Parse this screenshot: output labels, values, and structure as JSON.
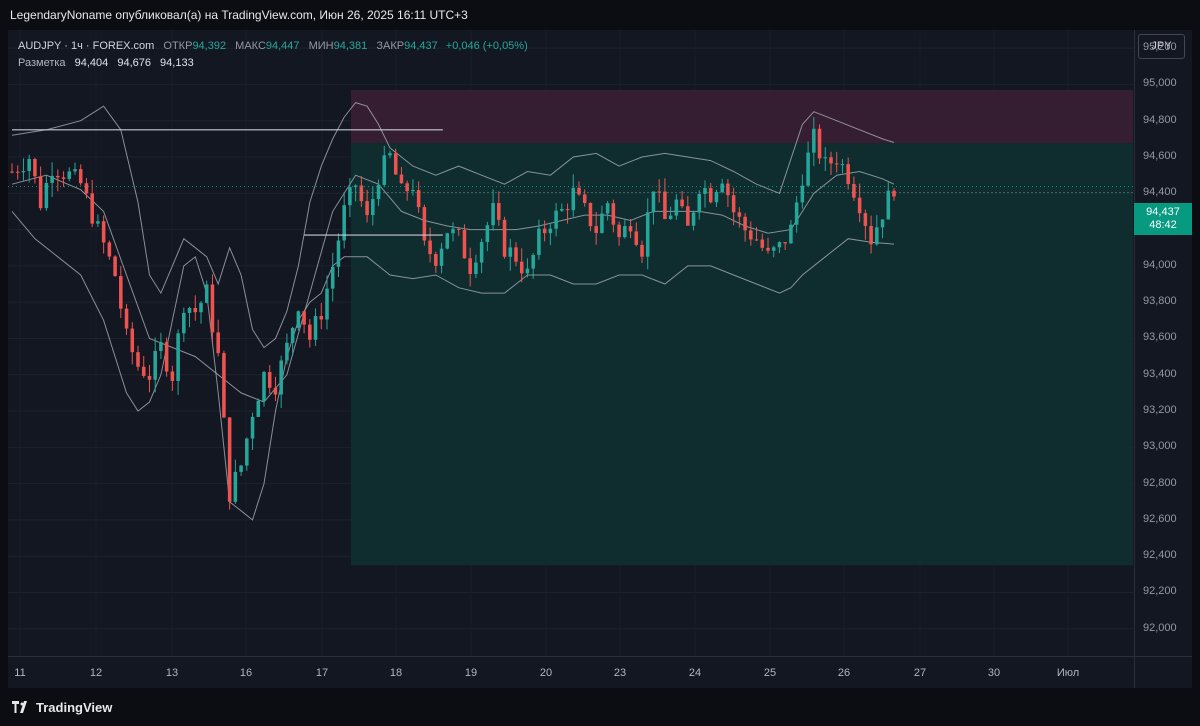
{
  "header": {
    "publisher_line": "LegendaryNoname опубликовал(а) на TradingView.com, Июн 26, 2025 16:11 UTC+3"
  },
  "legend": {
    "symbol": "AUDJPY · 1ч · FOREX.com",
    "open_label": "ОТКР",
    "open_value": "94,392",
    "high_label": "МАКС",
    "high_value": "94,447",
    "low_label": "МИН",
    "low_value": "94,381",
    "close_label": "ЗАКР",
    "close_value": "94,437",
    "change": "+0,046 (+0,05%)",
    "markup_label": "Разметка",
    "markup_values": [
      "94,404",
      "94,676",
      "94,133"
    ]
  },
  "currency_button": "JPY",
  "last_price": {
    "value": "94,437",
    "countdown": "48:42",
    "color": "#089981"
  },
  "price_axis": {
    "ticks": [
      "95,200",
      "95,000",
      "94,800",
      "94,600",
      "94,400",
      "94,200",
      "94,000",
      "93,800",
      "93,600",
      "93,400",
      "93,200",
      "93,000",
      "92,800",
      "92,600",
      "92,400",
      "92,200",
      "92,000"
    ]
  },
  "time_axis": {
    "labels": [
      "11",
      "12",
      "13",
      "16",
      "17",
      "18",
      "19",
      "20",
      "23",
      "24",
      "25",
      "26",
      "27",
      "30",
      "Июл"
    ]
  },
  "footer": {
    "brand": "TradingView"
  },
  "chart_data": {
    "type": "candlestick",
    "symbol": "AUDJPY",
    "timeframe": "1h",
    "ylim": [
      91.85,
      95.3
    ],
    "up_color": "#26a69a",
    "down_color": "#ef5350",
    "indicator": "Bollinger Bands",
    "close_path": [
      [
        0,
        94.52
      ],
      [
        3,
        94.6
      ],
      [
        5,
        94.35
      ],
      [
        7,
        94.55
      ],
      [
        10,
        94.5
      ],
      [
        12,
        94.45
      ],
      [
        15,
        94.2
      ],
      [
        18,
        93.95
      ],
      [
        20,
        93.6
      ],
      [
        22,
        93.45
      ],
      [
        24,
        93.4
      ],
      [
        26,
        93.55
      ],
      [
        28,
        93.4
      ],
      [
        30,
        93.8
      ],
      [
        32,
        93.75
      ],
      [
        34,
        93.85
      ],
      [
        36,
        93.5
      ],
      [
        38,
        92.75
      ],
      [
        40,
        92.9
      ],
      [
        42,
        93.2
      ],
      [
        44,
        93.4
      ],
      [
        46,
        93.35
      ],
      [
        48,
        93.55
      ],
      [
        50,
        93.8
      ],
      [
        52,
        93.6
      ],
      [
        54,
        93.75
      ],
      [
        56,
        94.0
      ],
      [
        58,
        94.3
      ],
      [
        60,
        94.45
      ],
      [
        62,
        94.25
      ],
      [
        64,
        94.5
      ],
      [
        66,
        94.6
      ],
      [
        68,
        94.4
      ],
      [
        70,
        94.45
      ],
      [
        72,
        94.1
      ],
      [
        74,
        94.05
      ],
      [
        76,
        94.2
      ],
      [
        78,
        94.15
      ],
      [
        80,
        94.0
      ],
      [
        82,
        94.15
      ],
      [
        84,
        94.3
      ],
      [
        86,
        94.1
      ],
      [
        88,
        94.05
      ],
      [
        90,
        93.95
      ],
      [
        92,
        94.15
      ],
      [
        94,
        94.25
      ],
      [
        96,
        94.3
      ],
      [
        98,
        94.4
      ],
      [
        100,
        94.3
      ],
      [
        102,
        94.2
      ],
      [
        104,
        94.35
      ],
      [
        106,
        94.15
      ],
      [
        108,
        94.25
      ],
      [
        110,
        94.1
      ],
      [
        112,
        94.45
      ],
      [
        114,
        94.25
      ],
      [
        116,
        94.35
      ],
      [
        118,
        94.2
      ],
      [
        120,
        94.45
      ],
      [
        122,
        94.4
      ],
      [
        124,
        94.5
      ],
      [
        126,
        94.3
      ],
      [
        128,
        94.2
      ],
      [
        130,
        94.15
      ],
      [
        132,
        94.05
      ],
      [
        134,
        94.1
      ],
      [
        136,
        94.2
      ],
      [
        138,
        94.5
      ],
      [
        140,
        94.7
      ],
      [
        142,
        94.55
      ],
      [
        144,
        94.6
      ],
      [
        146,
        94.5
      ],
      [
        148,
        94.35
      ],
      [
        150,
        94.15
      ],
      [
        152,
        94.3
      ],
      [
        154,
        94.44
      ]
    ],
    "upper_band": [
      [
        0,
        94.72
      ],
      [
        6,
        94.75
      ],
      [
        12,
        94.8
      ],
      [
        16,
        94.88
      ],
      [
        19,
        94.75
      ],
      [
        22,
        94.35
      ],
      [
        24,
        93.95
      ],
      [
        26,
        93.85
      ],
      [
        28,
        94.0
      ],
      [
        30,
        94.15
      ],
      [
        32,
        94.1
      ],
      [
        34,
        94.05
      ],
      [
        36,
        93.9
      ],
      [
        38,
        94.1
      ],
      [
        40,
        93.95
      ],
      [
        42,
        93.65
      ],
      [
        44,
        93.55
      ],
      [
        46,
        93.6
      ],
      [
        48,
        93.75
      ],
      [
        50,
        94.0
      ],
      [
        52,
        94.35
      ],
      [
        54,
        94.55
      ],
      [
        56,
        94.7
      ],
      [
        58,
        94.82
      ],
      [
        60,
        94.9
      ],
      [
        62,
        94.88
      ],
      [
        64,
        94.78
      ],
      [
        66,
        94.65
      ],
      [
        70,
        94.55
      ],
      [
        74,
        94.5
      ],
      [
        78,
        94.55
      ],
      [
        82,
        94.5
      ],
      [
        86,
        94.45
      ],
      [
        90,
        94.52
      ],
      [
        94,
        94.5
      ],
      [
        98,
        94.6
      ],
      [
        102,
        94.62
      ],
      [
        106,
        94.55
      ],
      [
        110,
        94.6
      ],
      [
        114,
        94.62
      ],
      [
        118,
        94.6
      ],
      [
        122,
        94.58
      ],
      [
        126,
        94.52
      ],
      [
        130,
        94.45
      ],
      [
        134,
        94.4
      ],
      [
        138,
        94.78
      ],
      [
        140,
        94.85
      ],
      [
        144,
        94.8
      ],
      [
        148,
        94.75
      ],
      [
        152,
        94.7
      ],
      [
        154,
        94.68
      ]
    ],
    "lower_band": [
      [
        0,
        94.3
      ],
      [
        4,
        94.15
      ],
      [
        8,
        94.05
      ],
      [
        12,
        93.95
      ],
      [
        16,
        93.7
      ],
      [
        20,
        93.3
      ],
      [
        22,
        93.2
      ],
      [
        24,
        93.25
      ],
      [
        26,
        93.4
      ],
      [
        28,
        93.7
      ],
      [
        30,
        94.0
      ],
      [
        32,
        94.05
      ],
      [
        34,
        93.85
      ],
      [
        36,
        93.3
      ],
      [
        38,
        92.7
      ],
      [
        40,
        92.65
      ],
      [
        42,
        92.6
      ],
      [
        44,
        92.8
      ],
      [
        46,
        93.2
      ],
      [
        48,
        93.5
      ],
      [
        50,
        93.7
      ],
      [
        52,
        93.8
      ],
      [
        54,
        93.85
      ],
      [
        56,
        94.0
      ],
      [
        58,
        94.05
      ],
      [
        62,
        94.05
      ],
      [
        66,
        93.95
      ],
      [
        70,
        93.93
      ],
      [
        74,
        93.95
      ],
      [
        78,
        93.88
      ],
      [
        82,
        93.85
      ],
      [
        86,
        93.85
      ],
      [
        90,
        93.95
      ],
      [
        94,
        93.95
      ],
      [
        98,
        93.9
      ],
      [
        102,
        93.9
      ],
      [
        106,
        93.95
      ],
      [
        110,
        93.95
      ],
      [
        114,
        93.9
      ],
      [
        118,
        94.0
      ],
      [
        122,
        94.0
      ],
      [
        126,
        93.95
      ],
      [
        130,
        93.9
      ],
      [
        134,
        93.85
      ],
      [
        136,
        93.88
      ],
      [
        138,
        93.95
      ],
      [
        142,
        94.05
      ],
      [
        146,
        94.15
      ],
      [
        150,
        94.13
      ],
      [
        154,
        94.12
      ]
    ],
    "middle_band": [
      [
        0,
        94.45
      ],
      [
        6,
        94.5
      ],
      [
        12,
        94.42
      ],
      [
        16,
        94.3
      ],
      [
        20,
        93.95
      ],
      [
        24,
        93.6
      ],
      [
        28,
        93.55
      ],
      [
        32,
        93.5
      ],
      [
        36,
        93.4
      ],
      [
        40,
        93.3
      ],
      [
        44,
        93.25
      ],
      [
        48,
        93.4
      ],
      [
        52,
        93.85
      ],
      [
        56,
        94.3
      ],
      [
        60,
        94.5
      ],
      [
        64,
        94.45
      ],
      [
        68,
        94.3
      ],
      [
        72,
        94.25
      ],
      [
        76,
        94.22
      ],
      [
        80,
        94.2
      ],
      [
        84,
        94.2
      ],
      [
        88,
        94.2
      ],
      [
        92,
        94.22
      ],
      [
        96,
        94.25
      ],
      [
        100,
        94.28
      ],
      [
        104,
        94.28
      ],
      [
        108,
        94.25
      ],
      [
        112,
        94.3
      ],
      [
        116,
        94.3
      ],
      [
        120,
        94.3
      ],
      [
        124,
        94.28
      ],
      [
        128,
        94.22
      ],
      [
        132,
        94.18
      ],
      [
        136,
        94.2
      ],
      [
        140,
        94.4
      ],
      [
        144,
        94.5
      ],
      [
        148,
        94.52
      ],
      [
        152,
        94.48
      ],
      [
        154,
        94.45
      ]
    ],
    "zones": [
      {
        "name": "resistance",
        "from": 94.676,
        "to": 94.97,
        "color": "#3a1f33"
      },
      {
        "name": "support",
        "from": 92.35,
        "to": 94.676,
        "color": "#0f2f31"
      }
    ],
    "horizontal_lines": [
      {
        "price": 94.75,
        "from": 0,
        "to": 63
      },
      {
        "price": 94.17,
        "from": 51,
        "to": 63
      }
    ],
    "markup_entry": 94.404
  }
}
